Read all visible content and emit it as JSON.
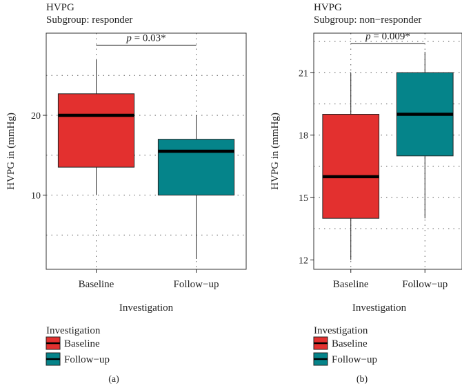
{
  "colors": {
    "baseline": "#e3302f",
    "followup": "#05848a",
    "median": "#000000",
    "grid": "#555555",
    "frame": "#333333"
  },
  "chart_data": [
    {
      "type": "box",
      "panel_label": "(a)",
      "title": "HVPG",
      "subtitle": "Subgroup: responder",
      "xlabel": "Investigation",
      "ylabel": "HVPG in (mmHg)",
      "categories": [
        "Baseline",
        "Follow−up"
      ],
      "ylim": [
        0.7,
        30.3
      ],
      "yticks": [
        10,
        20
      ],
      "ygrid": [
        5,
        10,
        15,
        20,
        25
      ],
      "grid": true,
      "boxes": [
        {
          "category": "Baseline",
          "min": 10,
          "q1": 13.5,
          "median": 20,
          "q3": 22.7,
          "max": 27
        },
        {
          "category": "Follow−up",
          "min": 2,
          "q1": 10,
          "median": 15.5,
          "q3": 17,
          "max": 20
        }
      ],
      "annotation": {
        "label": "p",
        "text": " = 0.03*",
        "y": 28.8
      },
      "legend": {
        "title": "Investigation",
        "entries": [
          "Baseline",
          "Follow−up"
        ],
        "position": "bottom"
      }
    },
    {
      "type": "box",
      "panel_label": "(b)",
      "title": "HVPG",
      "subtitle": "Subgroup: non−responder",
      "xlabel": "Investigation",
      "ylabel": "HVPG in (mmHg)",
      "categories": [
        "Baseline",
        "Follow−up"
      ],
      "ylim": [
        11.55,
        22.9
      ],
      "yticks": [
        12,
        15,
        18,
        21
      ],
      "ygrid": [
        13.5,
        15,
        16.5,
        18,
        19.5,
        21,
        22.5
      ],
      "grid": true,
      "boxes": [
        {
          "category": "Baseline",
          "min": 12,
          "q1": 14,
          "median": 16,
          "q3": 19,
          "max": 21
        },
        {
          "category": "Follow−up",
          "min": 14,
          "q1": 17,
          "median": 19,
          "q3": 21,
          "max": 22
        }
      ],
      "annotation": {
        "label": "p",
        "text": " = 0.009*",
        "y": 22.4
      },
      "legend": {
        "title": "Investigation",
        "entries": [
          "Baseline",
          "Follow−up"
        ],
        "position": "bottom"
      }
    }
  ]
}
